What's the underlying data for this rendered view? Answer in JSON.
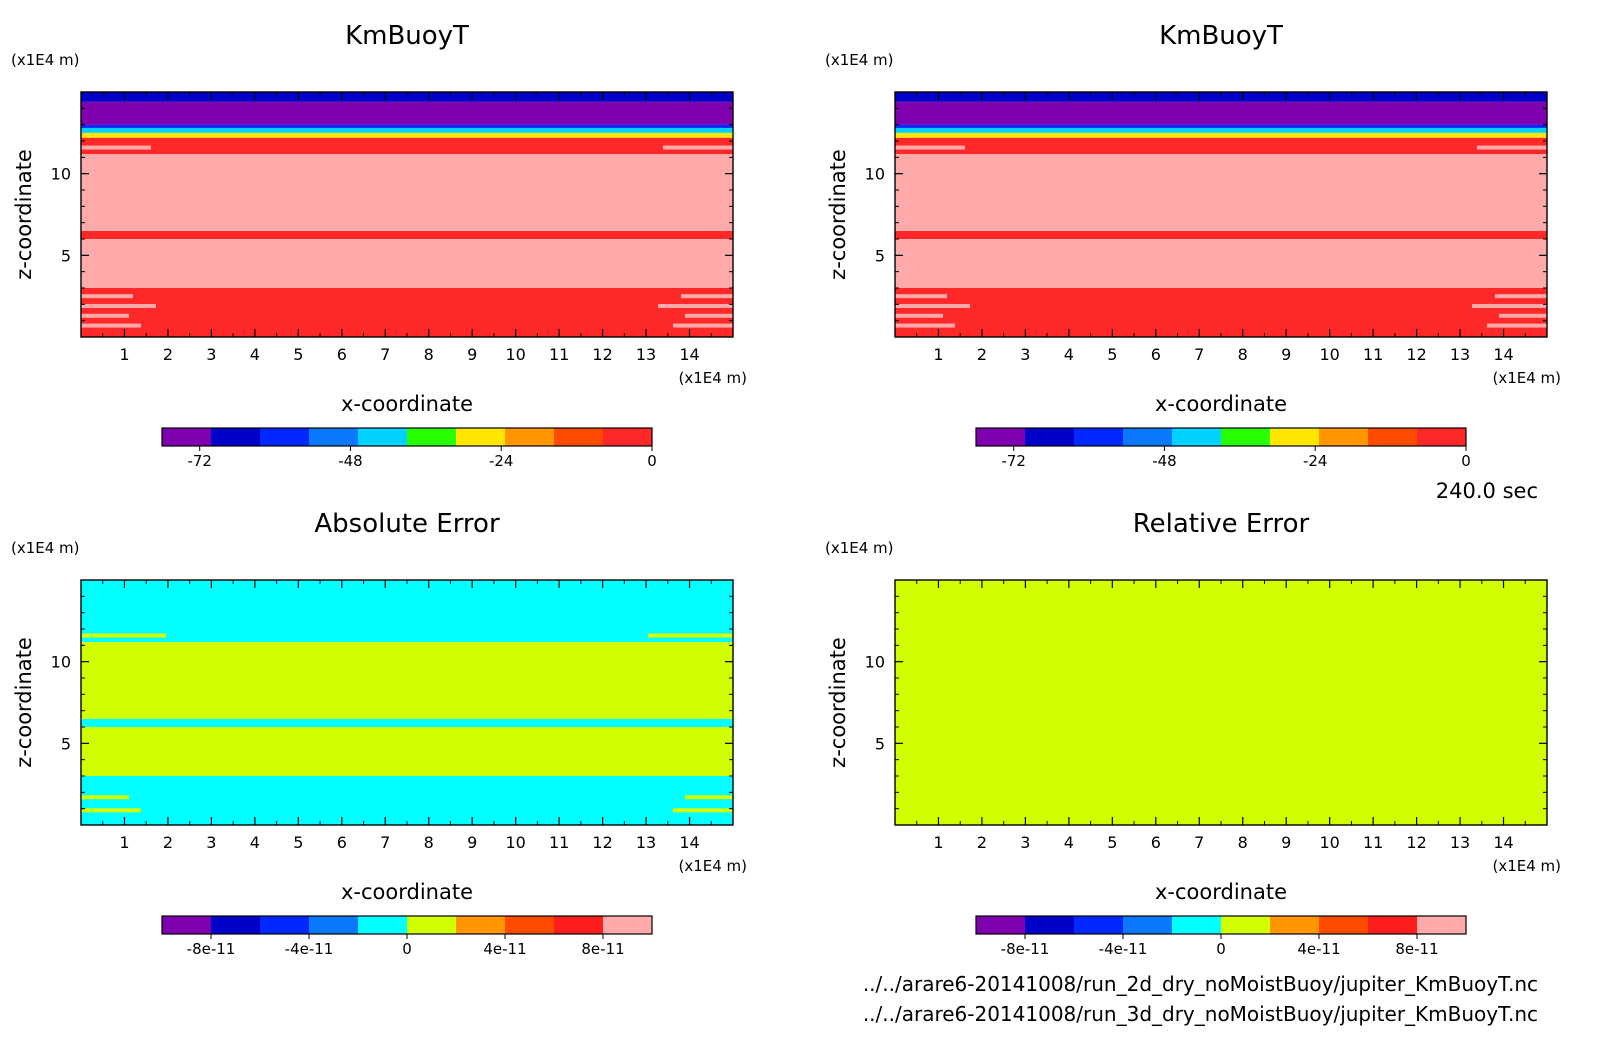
{
  "time_label": "240.0 sec",
  "file_paths": [
    "../../arare6-20141008/run_2d_dry_noMoistBuoy/jupiter_KmBuoyT.nc",
    "../../arare6-20141008/run_3d_dry_noMoistBuoy/jupiter_KmBuoyT.nc"
  ],
  "chart_data": [
    {
      "type": "heatmap",
      "title": "KmBuoyT",
      "xlabel": "x-coordinate",
      "ylabel": "z-coordinate",
      "x_unit": "(x1E4 m)",
      "y_unit": "(x1E4 m)",
      "xlim": [
        0,
        15
      ],
      "ylim": [
        0,
        15
      ],
      "x_ticks": [
        1,
        2,
        3,
        4,
        5,
        6,
        7,
        8,
        9,
        10,
        11,
        12,
        13,
        14
      ],
      "y_ticks": [
        5,
        10
      ],
      "colorbar": {
        "colors": [
          "#7f00af",
          "#0000c8",
          "#0028ff",
          "#0a78ff",
          "#00d2ff",
          "#28ff00",
          "#ffe600",
          "#ff9600",
          "#ff4b00",
          "#ff2828"
        ],
        "ticks": [
          "-72",
          "-48",
          "-24",
          "0"
        ],
        "tick_positions": [
          -72,
          -48,
          -24,
          0
        ],
        "range": [
          -78,
          0
        ]
      },
      "bands": [
        {
          "z0": 0,
          "z1": 3.0,
          "color": "#ff2828"
        },
        {
          "z0": 3.0,
          "z1": 6.0,
          "color": "#ffaaaa"
        },
        {
          "z0": 6.0,
          "z1": 6.5,
          "color": "#ff2828"
        },
        {
          "z0": 6.5,
          "z1": 11.2,
          "color": "#ffaaaa"
        },
        {
          "z0": 11.2,
          "z1": 12.2,
          "color": "#ff2828"
        },
        {
          "z0": 12.2,
          "z1": 12.5,
          "color": "#ffe600"
        },
        {
          "z0": 12.5,
          "z1": 12.8,
          "color": "#00d2ff"
        },
        {
          "z0": 12.8,
          "z1": 13.0,
          "color": "#0028ff"
        },
        {
          "z0": 13.0,
          "z1": 14.4,
          "color": "#7f00af"
        },
        {
          "z0": 14.4,
          "z1": 15.0,
          "color": "#0000c8"
        }
      ],
      "stripes": {
        "color": "#ffaaaa",
        "z": [
          0.7,
          1.3,
          1.9,
          2.5,
          4.0,
          4.5,
          5.1,
          5.6,
          11.6
        ]
      }
    },
    {
      "type": "heatmap",
      "title": "KmBuoyT",
      "xlabel": "x-coordinate",
      "ylabel": "z-coordinate",
      "x_unit": "(x1E4 m)",
      "y_unit": "(x1E4 m)",
      "xlim": [
        0,
        15
      ],
      "ylim": [
        0,
        15
      ],
      "x_ticks": [
        1,
        2,
        3,
        4,
        5,
        6,
        7,
        8,
        9,
        10,
        11,
        12,
        13,
        14
      ],
      "y_ticks": [
        5,
        10
      ],
      "colorbar": {
        "colors": [
          "#7f00af",
          "#0000c8",
          "#0028ff",
          "#0a78ff",
          "#00d2ff",
          "#28ff00",
          "#ffe600",
          "#ff9600",
          "#ff4b00",
          "#ff2828"
        ],
        "ticks": [
          "-72",
          "-48",
          "-24",
          "0"
        ],
        "tick_positions": [
          -72,
          -48,
          -24,
          0
        ],
        "range": [
          -78,
          0
        ]
      },
      "bands": [
        {
          "z0": 0,
          "z1": 3.0,
          "color": "#ff2828"
        },
        {
          "z0": 3.0,
          "z1": 6.0,
          "color": "#ffaaaa"
        },
        {
          "z0": 6.0,
          "z1": 6.5,
          "color": "#ff2828"
        },
        {
          "z0": 6.5,
          "z1": 11.2,
          "color": "#ffaaaa"
        },
        {
          "z0": 11.2,
          "z1": 12.2,
          "color": "#ff2828"
        },
        {
          "z0": 12.2,
          "z1": 12.5,
          "color": "#ffe600"
        },
        {
          "z0": 12.5,
          "z1": 12.8,
          "color": "#00d2ff"
        },
        {
          "z0": 12.8,
          "z1": 13.0,
          "color": "#0028ff"
        },
        {
          "z0": 13.0,
          "z1": 14.4,
          "color": "#7f00af"
        },
        {
          "z0": 14.4,
          "z1": 15.0,
          "color": "#0000c8"
        }
      ],
      "stripes": {
        "color": "#ffaaaa",
        "z": [
          0.7,
          1.3,
          1.9,
          2.5,
          4.0,
          4.5,
          5.1,
          5.6,
          11.6
        ]
      }
    },
    {
      "type": "heatmap",
      "title": "Absolute Error",
      "xlabel": "x-coordinate",
      "ylabel": "z-coordinate",
      "x_unit": "(x1E4 m)",
      "y_unit": "(x1E4 m)",
      "xlim": [
        0,
        15
      ],
      "ylim": [
        0,
        15
      ],
      "x_ticks": [
        1,
        2,
        3,
        4,
        5,
        6,
        7,
        8,
        9,
        10,
        11,
        12,
        13,
        14
      ],
      "y_ticks": [
        5,
        10
      ],
      "colorbar": {
        "colors": [
          "#7f00af",
          "#0000c8",
          "#0028ff",
          "#0a78ff",
          "#00ffff",
          "#d2ff00",
          "#ff9600",
          "#ff4b00",
          "#ff1e1e",
          "#ffaaaa"
        ],
        "ticks": [
          "-8e-11",
          "-4e-11",
          "0",
          "4e-11",
          "8e-11"
        ],
        "tick_positions": [
          -8,
          -4,
          0,
          4,
          8
        ],
        "range": [
          -10,
          10
        ]
      },
      "bands": [
        {
          "z0": 0,
          "z1": 3.0,
          "color": "#00ffff"
        },
        {
          "z0": 3.0,
          "z1": 6.0,
          "color": "#d2ff00"
        },
        {
          "z0": 6.0,
          "z1": 6.5,
          "color": "#00ffff"
        },
        {
          "z0": 6.5,
          "z1": 11.2,
          "color": "#d2ff00"
        },
        {
          "z0": 11.2,
          "z1": 15.0,
          "color": "#00ffff"
        }
      ],
      "stripes": {
        "color": "#d2ff00",
        "z": [
          0.9,
          1.7,
          4.0,
          4.5,
          5.1,
          5.6,
          11.6
        ]
      }
    },
    {
      "type": "heatmap",
      "title": "Relative Error",
      "xlabel": "x-coordinate",
      "ylabel": "z-coordinate",
      "x_unit": "(x1E4 m)",
      "y_unit": "(x1E4 m)",
      "xlim": [
        0,
        15
      ],
      "ylim": [
        0,
        15
      ],
      "x_ticks": [
        1,
        2,
        3,
        4,
        5,
        6,
        7,
        8,
        9,
        10,
        11,
        12,
        13,
        14
      ],
      "y_ticks": [
        5,
        10
      ],
      "colorbar": {
        "colors": [
          "#7f00af",
          "#0000c8",
          "#0028ff",
          "#0a78ff",
          "#00ffff",
          "#d2ff00",
          "#ff9600",
          "#ff4b00",
          "#ff1e1e",
          "#ffaaaa"
        ],
        "ticks": [
          "-8e-11",
          "-4e-11",
          "0",
          "4e-11",
          "8e-11"
        ],
        "tick_positions": [
          -8,
          -4,
          0,
          4,
          8
        ],
        "range": [
          -10,
          10
        ]
      },
      "bands": [
        {
          "z0": 0,
          "z1": 15.0,
          "color": "#d2ff00"
        }
      ],
      "stripes": {
        "color": "#d2ff00",
        "z": []
      }
    }
  ]
}
